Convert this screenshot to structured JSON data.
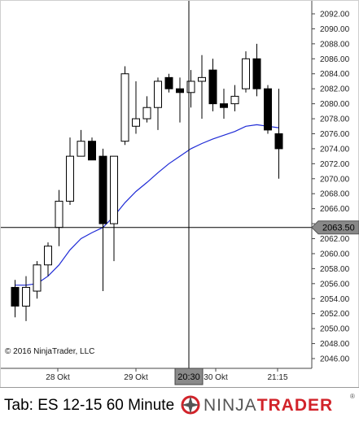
{
  "window": {
    "tab_title": "Tab: ES 12-15 60 Minute",
    "copyright": "© 2016 NinjaTrader, LLC",
    "logo": {
      "ninja": "NINJA",
      "trader": "TRADER",
      "reg": "®"
    }
  },
  "colors": {
    "up_candle": "#ffffff",
    "down_candle": "#000000",
    "sma_line": "#1f2bd6",
    "crosshair": "#000000",
    "price_marker_bg": "#888888",
    "brand_red": "#d2232a"
  },
  "crosshair": {
    "price_label": "2063.50",
    "time_label": "20:30",
    "price": 2063.5
  },
  "chart_data": {
    "type": "candlestick",
    "y_ticks": [
      "2046.00",
      "2048.00",
      "2050.00",
      "2052.00",
      "2054.00",
      "2056.00",
      "2058.00",
      "2060.00",
      "2062.00",
      "2064.00",
      "2066.00",
      "2068.00",
      "2070.00",
      "2072.00",
      "2074.00",
      "2076.00",
      "2078.00",
      "2080.00",
      "2082.00",
      "2084.00",
      "2086.00",
      "2088.00",
      "2090.00",
      "2092.00"
    ],
    "ylim": [
      2046,
      2093
    ],
    "x_labels": [
      "28 Okt",
      "29 Okt",
      "30 Okt",
      "21:15"
    ],
    "series": [
      {
        "name": "ES 12-15",
        "candles": [
          {
            "o": 2055.5,
            "h": 2056.5,
            "l": 2051.5,
            "c": 2053.0
          },
          {
            "o": 2053.0,
            "h": 2057.0,
            "l": 2051.0,
            "c": 2055.5
          },
          {
            "o": 2055.0,
            "h": 2059.0,
            "l": 2054.0,
            "c": 2058.5
          },
          {
            "o": 2058.5,
            "h": 2061.5,
            "l": 2057.0,
            "c": 2061.0
          },
          {
            "o": 2063.5,
            "h": 2068.5,
            "l": 2061.0,
            "c": 2067.0
          },
          {
            "o": 2067.0,
            "h": 2075.5,
            "l": 2066.5,
            "c": 2073.0
          },
          {
            "o": 2073.0,
            "h": 2076.5,
            "l": 2073.0,
            "c": 2075.0
          },
          {
            "o": 2075.0,
            "h": 2075.5,
            "l": 2072.5,
            "c": 2072.5
          },
          {
            "o": 2073.0,
            "h": 2074.0,
            "l": 2055.0,
            "c": 2064.0
          },
          {
            "o": 2064.0,
            "h": 2073.0,
            "l": 2059.0,
            "c": 2073.0
          },
          {
            "o": 2075.0,
            "h": 2085.0,
            "l": 2074.5,
            "c": 2084.0
          },
          {
            "o": 2077.0,
            "h": 2083.0,
            "l": 2076.0,
            "c": 2078.0
          },
          {
            "o": 2078.0,
            "h": 2081.0,
            "l": 2077.5,
            "c": 2079.5
          },
          {
            "o": 2079.5,
            "h": 2083.5,
            "l": 2076.5,
            "c": 2083.0
          },
          {
            "o": 2083.5,
            "h": 2084.0,
            "l": 2081.5,
            "c": 2082.0
          },
          {
            "o": 2082.0,
            "h": 2083.5,
            "l": 2077.5,
            "c": 2081.5
          },
          {
            "o": 2081.5,
            "h": 2084.5,
            "l": 2079.5,
            "c": 2083.0
          },
          {
            "o": 2083.0,
            "h": 2086.5,
            "l": 2078.0,
            "c": 2083.5
          },
          {
            "o": 2084.5,
            "h": 2086.0,
            "l": 2079.0,
            "c": 2080.0
          },
          {
            "o": 2080.0,
            "h": 2082.0,
            "l": 2078.0,
            "c": 2079.5
          },
          {
            "o": 2080.0,
            "h": 2082.5,
            "l": 2079.0,
            "c": 2081.0
          },
          {
            "o": 2082.0,
            "h": 2087.0,
            "l": 2081.5,
            "c": 2086.0
          },
          {
            "o": 2086.0,
            "h": 2088.0,
            "l": 2081.0,
            "c": 2082.0
          },
          {
            "o": 2082.0,
            "h": 2082.5,
            "l": 2076.0,
            "c": 2076.5
          },
          {
            "o": 2076.0,
            "h": 2082.0,
            "l": 2070.0,
            "c": 2074.0
          }
        ]
      },
      {
        "name": "SMA",
        "values": [
          2055.8,
          2055.8,
          2056.0,
          2057.0,
          2058.5,
          2060.5,
          2062.0,
          2062.8,
          2063.5,
          2065.0,
          2066.8,
          2068.3,
          2069.5,
          2070.8,
          2072.0,
          2073.0,
          2074.0,
          2074.7,
          2075.3,
          2075.8,
          2076.3,
          2077.0,
          2077.2,
          2077.0,
          2076.8
        ]
      }
    ]
  }
}
